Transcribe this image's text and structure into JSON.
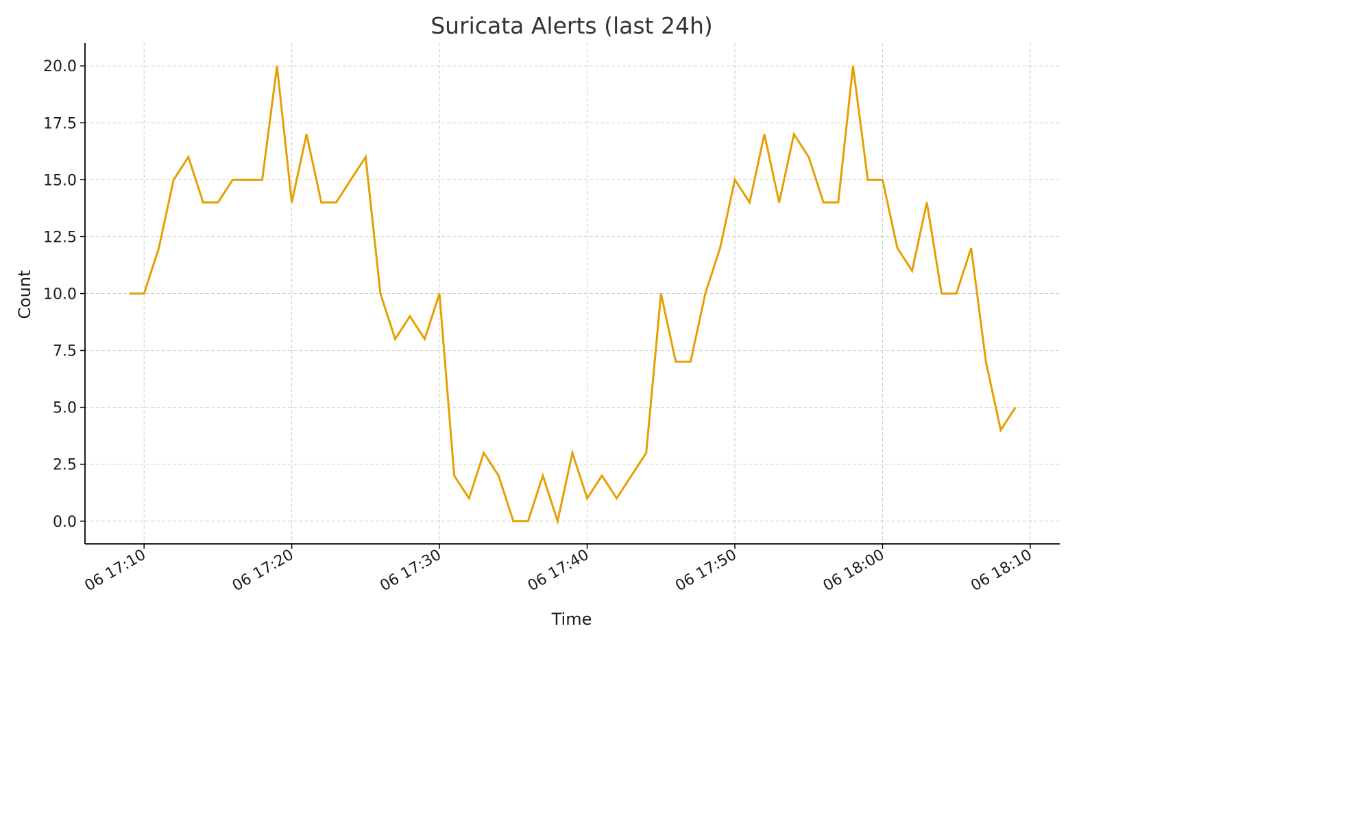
{
  "chart_data": {
    "type": "line",
    "title": "Suricata Alerts (last 24h)",
    "xlabel": "Time",
    "ylabel": "Count",
    "x": [
      "06 17:09",
      "06 17:10",
      "06 17:11",
      "06 17:12",
      "06 17:13",
      "06 17:14",
      "06 17:15",
      "06 17:16",
      "06 17:17",
      "06 17:18",
      "06 17:19",
      "06 17:20",
      "06 17:21",
      "06 17:22",
      "06 17:23",
      "06 17:24",
      "06 17:25",
      "06 17:26",
      "06 17:27",
      "06 17:28",
      "06 17:29",
      "06 17:30",
      "06 17:31",
      "06 17:32",
      "06 17:33",
      "06 17:34",
      "06 17:35",
      "06 17:36",
      "06 17:37",
      "06 17:38",
      "06 17:39",
      "06 17:40",
      "06 17:41",
      "06 17:42",
      "06 17:43",
      "06 17:44",
      "06 17:45",
      "06 17:46",
      "06 17:47",
      "06 17:48",
      "06 17:49",
      "06 17:50",
      "06 17:51",
      "06 17:52",
      "06 17:53",
      "06 17:54",
      "06 17:55",
      "06 17:56",
      "06 17:57",
      "06 17:58",
      "06 17:59",
      "06 18:00",
      "06 18:01",
      "06 18:02",
      "06 18:03",
      "06 18:04",
      "06 18:05",
      "06 18:06",
      "06 18:07",
      "06 18:08",
      "06 18:09"
    ],
    "series": [
      {
        "values": [
          10,
          10,
          12,
          15,
          16,
          14,
          14,
          15,
          15,
          15,
          20,
          14,
          17,
          14,
          14,
          15,
          16,
          10,
          8,
          9,
          8,
          10,
          2,
          1,
          3,
          2,
          0,
          0,
          2,
          0,
          3,
          1,
          2,
          1,
          2,
          3,
          10,
          7,
          7,
          10,
          12,
          15,
          14,
          17,
          14,
          17,
          16,
          14,
          14,
          20,
          15,
          15,
          12,
          11,
          14,
          10,
          10,
          12,
          7,
          4,
          5
        ],
        "color": "#e69f00"
      }
    ],
    "x_ticks": [
      "06 17:10",
      "06 17:20",
      "06 17:30",
      "06 17:40",
      "06 17:50",
      "06 18:00",
      "06 18:10"
    ],
    "y_ticks": [
      "0.0",
      "2.5",
      "5.0",
      "7.5",
      "10.0",
      "12.5",
      "15.0",
      "17.5",
      "20.0"
    ],
    "ylim": [
      -1,
      21
    ],
    "xlim": [
      "06 17:06",
      "06 18:12"
    ],
    "grid": true,
    "axis_color": "#000000",
    "grid_color": "#cccccc"
  }
}
